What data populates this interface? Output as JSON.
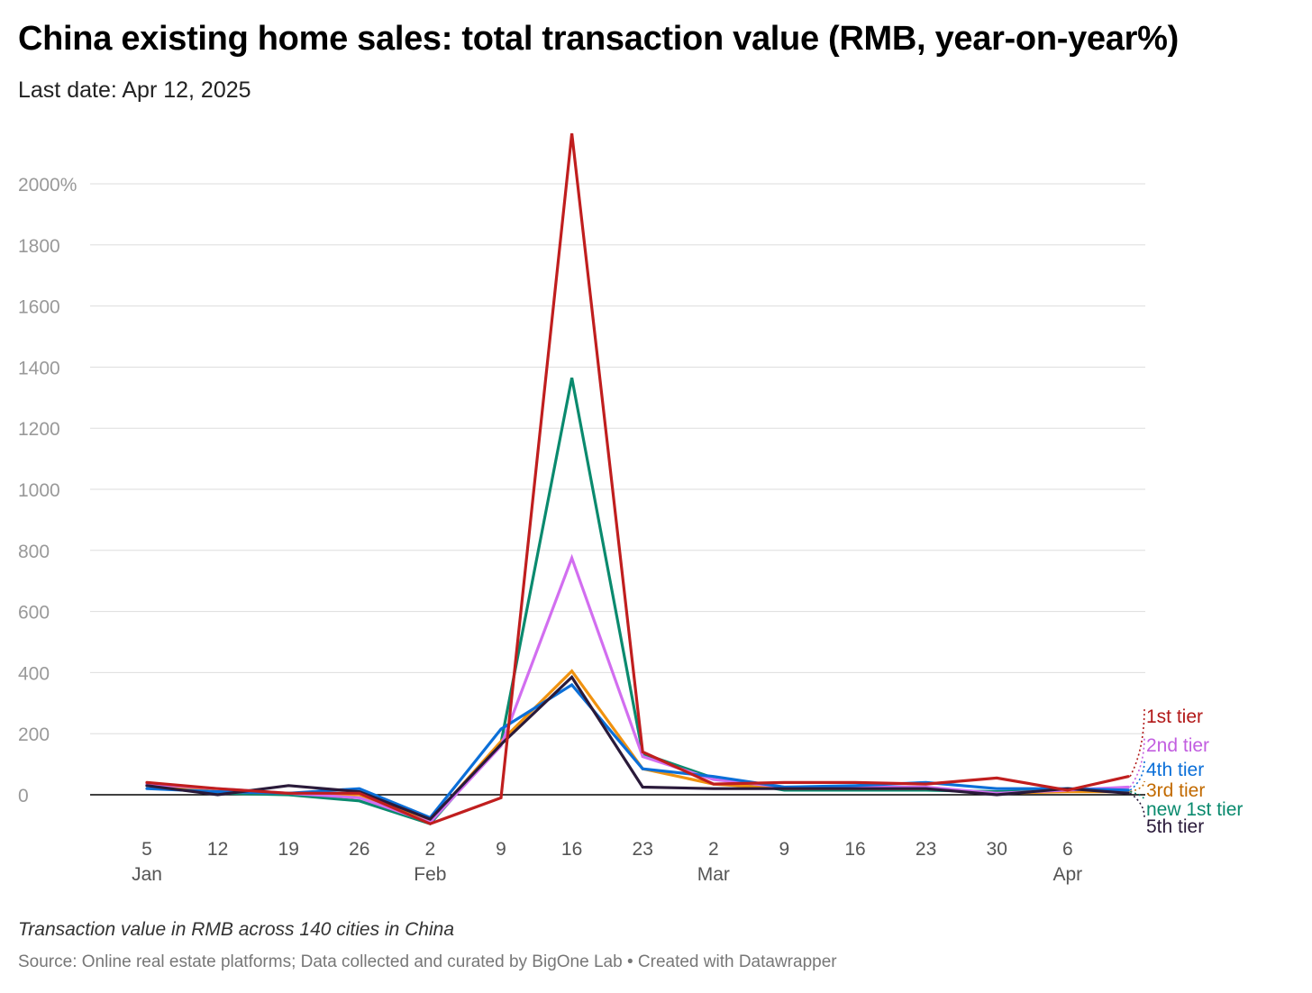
{
  "header": {
    "title": "China existing home sales: total transaction value (RMB, year-on-year%)",
    "subtitle": "Last date: Apr 12, 2025"
  },
  "footer": {
    "notes": "Transaction value in RMB across 140 cities in China",
    "source": "Source: Online real estate platforms; Data collected and curated by BigOne Lab",
    "credit": "Created with Datawrapper",
    "separator": " • "
  },
  "chart_data": {
    "type": "line",
    "title": "China existing home sales: total transaction value (RMB, year-on-year%)",
    "subtitle": "Last date: Apr 12, 2025",
    "ylim": [
      -100,
      2200
    ],
    "y_ticks": [
      {
        "value": 0,
        "label": "0"
      },
      {
        "value": 200,
        "label": "200"
      },
      {
        "value": 400,
        "label": "400"
      },
      {
        "value": 600,
        "label": "600"
      },
      {
        "value": 800,
        "label": "800"
      },
      {
        "value": 1000,
        "label": "1000"
      },
      {
        "value": 1200,
        "label": "1200"
      },
      {
        "value": 1400,
        "label": "1400"
      },
      {
        "value": 1600,
        "label": "1600"
      },
      {
        "value": 1800,
        "label": "1800"
      },
      {
        "value": 2000,
        "label": "2000%"
      }
    ],
    "x": [
      "2025-01-05",
      "2025-01-12",
      "2025-01-19",
      "2025-01-26",
      "2025-02-02",
      "2025-02-09",
      "2025-02-16",
      "2025-02-23",
      "2025-03-02",
      "2025-03-09",
      "2025-03-16",
      "2025-03-23",
      "2025-03-30",
      "2025-04-06",
      "2025-04-12"
    ],
    "x_ticks": [
      {
        "x": "2025-01-05",
        "label": "5",
        "month": "Jan"
      },
      {
        "x": "2025-01-12",
        "label": "12",
        "month": ""
      },
      {
        "x": "2025-01-19",
        "label": "19",
        "month": ""
      },
      {
        "x": "2025-01-26",
        "label": "26",
        "month": ""
      },
      {
        "x": "2025-02-02",
        "label": "2",
        "month": "Feb"
      },
      {
        "x": "2025-02-09",
        "label": "9",
        "month": ""
      },
      {
        "x": "2025-02-16",
        "label": "16",
        "month": ""
      },
      {
        "x": "2025-02-23",
        "label": "23",
        "month": ""
      },
      {
        "x": "2025-03-02",
        "label": "2",
        "month": "Mar"
      },
      {
        "x": "2025-03-09",
        "label": "9",
        "month": ""
      },
      {
        "x": "2025-03-16",
        "label": "16",
        "month": ""
      },
      {
        "x": "2025-03-23",
        "label": "23",
        "month": ""
      },
      {
        "x": "2025-03-30",
        "label": "30",
        "month": ""
      },
      {
        "x": "2025-04-06",
        "label": "6",
        "month": "Apr"
      }
    ],
    "grid": true,
    "legend": "direct labels at right",
    "series": [
      {
        "name": "new 1st tier",
        "color": "#0a8a6e",
        "values": [
          30,
          5,
          0,
          -20,
          -95,
          170,
          1365,
          135,
          55,
          15,
          15,
          15,
          10,
          15,
          10
        ]
      },
      {
        "name": "3rd tier",
        "color": "#f0920f",
        "values": [
          30,
          10,
          5,
          0,
          -85,
          175,
          405,
          85,
          35,
          20,
          20,
          20,
          5,
          10,
          10
        ]
      },
      {
        "name": "2nd tier",
        "color": "#d26ef0",
        "values": [
          35,
          20,
          5,
          -10,
          -90,
          160,
          775,
          125,
          50,
          25,
          25,
          25,
          5,
          15,
          25
        ]
      },
      {
        "name": "4th tier",
        "color": "#0b6fd8",
        "values": [
          20,
          10,
          5,
          20,
          -75,
          215,
          360,
          85,
          60,
          25,
          30,
          40,
          20,
          20,
          15
        ]
      },
      {
        "name": "5th tier",
        "color": "#2a1a3a",
        "values": [
          30,
          0,
          30,
          10,
          -80,
          165,
          385,
          25,
          20,
          20,
          20,
          20,
          0,
          20,
          5
        ]
      },
      {
        "name": "1st tier",
        "color": "#c01e1e",
        "values": [
          40,
          20,
          5,
          5,
          -95,
          -10,
          2165,
          140,
          35,
          40,
          40,
          35,
          55,
          15,
          60
        ]
      }
    ],
    "label_order": [
      "1st tier",
      "2nd tier",
      "4th tier",
      "3rd tier",
      "new 1st tier",
      "5th tier"
    ],
    "label_colors": {
      "1st tier": "#b21818",
      "2nd tier": "#c25ee0",
      "4th tier": "#0b6fd8",
      "3rd tier": "#c26a00",
      "new 1st tier": "#0a8a6e",
      "5th tier": "#2a1a3a"
    }
  }
}
